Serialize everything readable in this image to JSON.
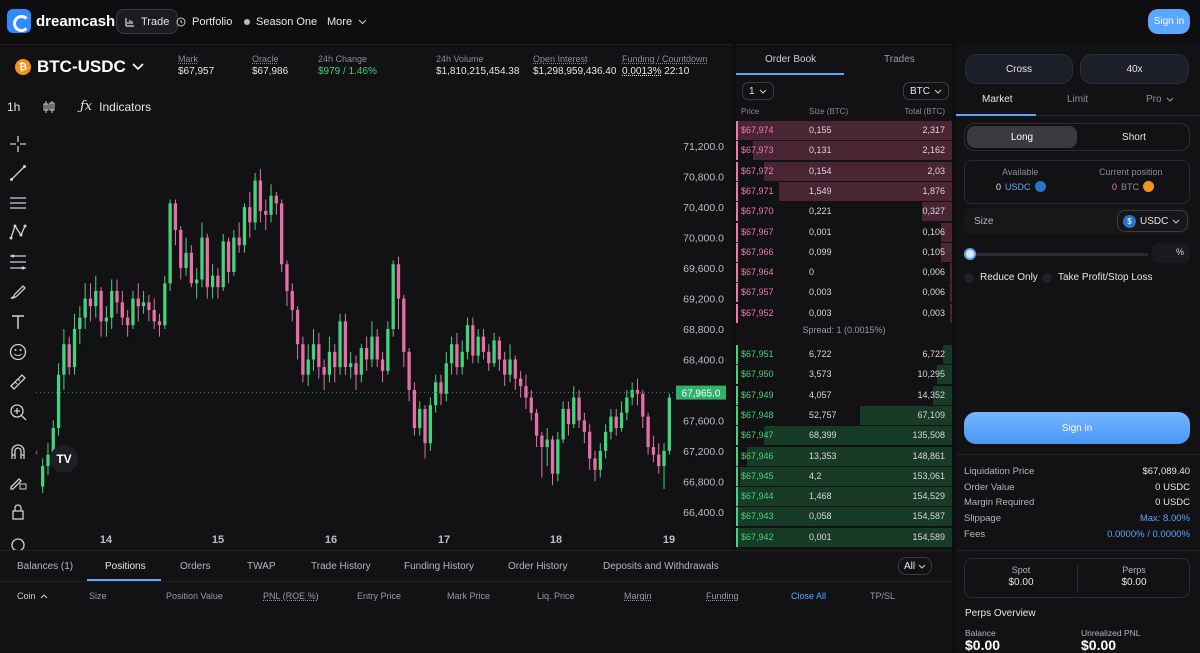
{
  "nav": {
    "brand": "dreamcash",
    "items": [
      "Trade",
      "Portfolio",
      "Season One",
      "More"
    ],
    "signin": "Sign in"
  },
  "market": {
    "symbol": "BTC-USDC",
    "stats": [
      {
        "label": "Mark",
        "value": "$67,957"
      },
      {
        "label": "Oracle",
        "value": "$67,986"
      },
      {
        "label": "24h Change",
        "value": "$979 / 1.46%"
      },
      {
        "label": "24h Volume",
        "value": "$1,810,215,454.38"
      },
      {
        "label": "Open Interest",
        "value": "$1,298,959,436.40"
      },
      {
        "label": "Funding / Countdown",
        "value": "0.0013%",
        "countdown": "22:10"
      }
    ]
  },
  "chart_toolbar": {
    "timeframe": "1h",
    "indicators": "Indicators"
  },
  "chart_data": {
    "type": "candlestick",
    "xlabels": [
      "14",
      "15",
      "16",
      "17",
      "18",
      "19"
    ],
    "ylabels": [
      "71,200.0",
      "70,800.0",
      "70,400.0",
      "70,000.0",
      "69,600.0",
      "69,200.0",
      "68,800.0",
      "68,400.0",
      "68,000.0",
      "67,600.0",
      "67,200.0",
      "66,800.0",
      "66,400.0"
    ],
    "ylim": [
      66200,
      71400
    ],
    "last_price": 67965,
    "last_price_label": "67,965.0",
    "candles": [
      [
        66730,
        67000,
        66650,
        67100
      ],
      [
        67000,
        67150,
        66880,
        67300
      ],
      [
        67150,
        67500,
        67050,
        67600
      ],
      [
        67500,
        68200,
        67400,
        68350
      ],
      [
        68200,
        68600,
        68000,
        68800
      ],
      [
        68600,
        68300,
        68200,
        68700
      ],
      [
        68300,
        68800,
        68200,
        69000
      ],
      [
        68800,
        68950,
        68600,
        69100
      ],
      [
        68950,
        69200,
        68800,
        69400
      ],
      [
        69200,
        69100,
        68900,
        69400
      ],
      [
        69100,
        69300,
        68950,
        69500
      ],
      [
        69300,
        68900,
        68700,
        69350
      ],
      [
        68900,
        68950,
        68700,
        69100
      ],
      [
        68950,
        69300,
        68800,
        69450
      ],
      [
        69300,
        69150,
        69000,
        69450
      ],
      [
        69150,
        68950,
        68850,
        69300
      ],
      [
        68950,
        68850,
        68700,
        69050
      ],
      [
        68850,
        69200,
        68800,
        69300
      ],
      [
        69200,
        69100,
        68900,
        69400
      ],
      [
        69100,
        69150,
        69000,
        69300
      ],
      [
        69150,
        69050,
        68900,
        69250
      ],
      [
        69050,
        68900,
        68800,
        69200
      ],
      [
        68900,
        68850,
        68700,
        69000
      ],
      [
        68850,
        69400,
        68800,
        69500
      ],
      [
        69400,
        70450,
        69300,
        70500
      ],
      [
        70450,
        70100,
        69900,
        70500
      ],
      [
        70100,
        69600,
        69450,
        70150
      ],
      [
        69600,
        69800,
        69500,
        70000
      ],
      [
        69800,
        69400,
        69350,
        69900
      ],
      [
        69400,
        69450,
        69200,
        69600
      ],
      [
        69450,
        70000,
        69350,
        70200
      ],
      [
        70000,
        69350,
        69200,
        70050
      ],
      [
        69350,
        69500,
        69200,
        69650
      ],
      [
        69500,
        69350,
        69200,
        69600
      ],
      [
        69350,
        69950,
        69300,
        70050
      ],
      [
        69950,
        69550,
        69400,
        70000
      ],
      [
        69550,
        70000,
        69500,
        70100
      ],
      [
        70000,
        69900,
        69800,
        70200
      ],
      [
        69900,
        70400,
        69800,
        70450
      ],
      [
        70400,
        70200,
        70000,
        70600
      ],
      [
        70200,
        70750,
        70100,
        70850
      ],
      [
        70750,
        70350,
        70200,
        70900
      ],
      [
        70350,
        70300,
        70100,
        70500
      ],
      [
        70300,
        70550,
        70200,
        70700
      ],
      [
        70550,
        70450,
        70300,
        70600
      ],
      [
        70450,
        69650,
        69550,
        70500
      ],
      [
        69650,
        69300,
        69100,
        69700
      ],
      [
        69300,
        69050,
        68900,
        69400
      ],
      [
        69050,
        68600,
        68400,
        69100
      ],
      [
        68600,
        68200,
        68100,
        68700
      ],
      [
        68200,
        68400,
        68050,
        68600
      ],
      [
        68400,
        68600,
        68250,
        68800
      ],
      [
        68600,
        68300,
        68150,
        68750
      ],
      [
        68300,
        68200,
        68000,
        68400
      ],
      [
        68200,
        68500,
        68100,
        68700
      ],
      [
        68500,
        68300,
        68100,
        68600
      ],
      [
        68300,
        68900,
        68200,
        69000
      ],
      [
        68900,
        68300,
        68200,
        69000
      ],
      [
        68300,
        68350,
        68150,
        68500
      ],
      [
        68350,
        68200,
        68000,
        68450
      ],
      [
        68200,
        68550,
        68100,
        68600
      ],
      [
        68550,
        68400,
        68250,
        68700
      ],
      [
        68400,
        68700,
        68300,
        68900
      ],
      [
        68700,
        68400,
        68300,
        68800
      ],
      [
        68400,
        68250,
        68100,
        68500
      ],
      [
        68250,
        68800,
        68200,
        68900
      ],
      [
        68800,
        69650,
        68700,
        69700
      ],
      [
        69650,
        69200,
        68800,
        69750
      ],
      [
        69200,
        68500,
        68300,
        69250
      ],
      [
        68500,
        68000,
        67850,
        68550
      ],
      [
        68000,
        67500,
        67400,
        68100
      ],
      [
        67500,
        67750,
        67400,
        67850
      ],
      [
        67750,
        67300,
        67100,
        67800
      ],
      [
        67300,
        67800,
        67200,
        67900
      ],
      [
        67800,
        68100,
        67700,
        68200
      ],
      [
        68100,
        67950,
        67800,
        68200
      ],
      [
        67950,
        68350,
        67850,
        68500
      ],
      [
        68350,
        68600,
        68200,
        68700
      ],
      [
        68600,
        68300,
        68200,
        68750
      ],
      [
        68300,
        68500,
        68200,
        68650
      ],
      [
        68500,
        68850,
        68400,
        68950
      ],
      [
        68850,
        68450,
        68350,
        68950
      ],
      [
        68450,
        68700,
        68350,
        68800
      ],
      [
        68700,
        68500,
        68400,
        68800
      ],
      [
        68500,
        68350,
        68250,
        68600
      ],
      [
        68350,
        68650,
        68300,
        68750
      ],
      [
        68650,
        68400,
        68250,
        68700
      ],
      [
        68400,
        68200,
        68050,
        68500
      ],
      [
        68200,
        68400,
        68100,
        68600
      ],
      [
        68400,
        68150,
        68000,
        68450
      ],
      [
        68150,
        68050,
        67900,
        68250
      ],
      [
        68050,
        67900,
        67750,
        68200
      ],
      [
        67900,
        67700,
        67600,
        68000
      ],
      [
        67700,
        67400,
        67250,
        67750
      ],
      [
        67400,
        67250,
        66850,
        67450
      ],
      [
        67250,
        67350,
        67000,
        67500
      ],
      [
        67350,
        66900,
        66750,
        67400
      ],
      [
        66900,
        67350,
        66800,
        67450
      ],
      [
        67350,
        67750,
        67300,
        67850
      ],
      [
        67750,
        67550,
        67400,
        67850
      ],
      [
        67550,
        67900,
        67500,
        68050
      ],
      [
        67900,
        67600,
        67500,
        68000
      ],
      [
        67600,
        67450,
        67300,
        67700
      ],
      [
        67450,
        67100,
        66950,
        67550
      ],
      [
        67100,
        66950,
        66800,
        67200
      ],
      [
        66950,
        67200,
        66850,
        67300
      ],
      [
        67200,
        67450,
        67100,
        67550
      ],
      [
        67450,
        67650,
        67350,
        67750
      ],
      [
        67650,
        67500,
        67400,
        67750
      ],
      [
        67500,
        67700,
        67450,
        67850
      ],
      [
        67700,
        67900,
        67600,
        68000
      ],
      [
        67900,
        68000,
        67800,
        68100
      ],
      [
        68000,
        67950,
        67800,
        68150
      ],
      [
        67950,
        67650,
        67500,
        68000
      ],
      [
        67650,
        67250,
        67150,
        67700
      ],
      [
        67250,
        67150,
        67050,
        67400
      ],
      [
        67150,
        67000,
        66900,
        67300
      ],
      [
        67000,
        67200,
        66700,
        67300
      ],
      [
        67200,
        67900,
        67150,
        67950
      ]
    ]
  },
  "orderbook": {
    "tabs": [
      "Order Book",
      "Trades"
    ],
    "grouping": "1",
    "unit": "BTC",
    "headers": [
      "Price",
      "Size (BTC)",
      "Total (BTC)"
    ],
    "asks": [
      {
        "price": "$67,974",
        "size": "0,155",
        "total": "2,317",
        "depth": 1.0
      },
      {
        "price": "$67,973",
        "size": "0,131",
        "total": "2,162",
        "depth": 0.93
      },
      {
        "price": "$67,972",
        "size": "0,154",
        "total": "2,03",
        "depth": 0.88
      },
      {
        "price": "$67,971",
        "size": "1,549",
        "total": "1,876",
        "depth": 0.81
      },
      {
        "price": "$67,970",
        "size": "0,221",
        "total": "0,327",
        "depth": 0.14
      },
      {
        "price": "$67,967",
        "size": "0,001",
        "total": "0,106",
        "depth": 0.05
      },
      {
        "price": "$67,966",
        "size": "0,099",
        "total": "0,105",
        "depth": 0.05
      },
      {
        "price": "$67,964",
        "size": "0",
        "total": "0,006",
        "depth": 0.01
      },
      {
        "price": "$67,957",
        "size": "0,003",
        "total": "0,006",
        "depth": 0.01
      },
      {
        "price": "$67,952",
        "size": "0,003",
        "total": "0,003",
        "depth": 0.01
      }
    ],
    "spread": "Spread: 1 (0.0015%)",
    "bids": [
      {
        "price": "$67,951",
        "size": "6,722",
        "total": "6,722",
        "depth": 0.04
      },
      {
        "price": "$67,950",
        "size": "3,573",
        "total": "10,295",
        "depth": 0.07
      },
      {
        "price": "$67,949",
        "size": "4,057",
        "total": "14,352",
        "depth": 0.09
      },
      {
        "price": "$67,948",
        "size": "52,757",
        "total": "67,109",
        "depth": 0.43
      },
      {
        "price": "$67,947",
        "size": "68,399",
        "total": "135,508",
        "depth": 0.88
      },
      {
        "price": "$67,946",
        "size": "13,353",
        "total": "148,861",
        "depth": 0.96
      },
      {
        "price": "$67,945",
        "size": "4,2",
        "total": "153,061",
        "depth": 0.99
      },
      {
        "price": "$67,944",
        "size": "1,468",
        "total": "154,529",
        "depth": 1.0
      },
      {
        "price": "$67,943",
        "size": "0,058",
        "total": "154,587",
        "depth": 1.0
      },
      {
        "price": "$67,942",
        "size": "0,001",
        "total": "154,589",
        "depth": 1.0
      }
    ]
  },
  "trade": {
    "margin_mode": "Cross",
    "leverage": "40x",
    "order_tabs": [
      "Market",
      "Limit",
      "Pro"
    ],
    "side": {
      "long": "Long",
      "short": "Short"
    },
    "available": {
      "label": "Available",
      "value": "0",
      "unit": "USDC"
    },
    "position": {
      "label": "Current position",
      "value": "0",
      "unit": "BTC"
    },
    "size_label": "Size",
    "size_unit": "USDC",
    "size_percent": 0,
    "percent_sign": "%",
    "reduce_only": "Reduce Only",
    "tpsl": "Take Profit/Stop Loss",
    "signin": "Sign in",
    "info": [
      {
        "k": "Liquidation Price",
        "v": "$67,089.40"
      },
      {
        "k": "Order Value",
        "v": "0 USDC"
      },
      {
        "k": "Margin Required",
        "v": "0 USDC"
      },
      {
        "k": "Slippage",
        "v": "Max: 8.00%",
        "blue": true
      },
      {
        "k": "Fees",
        "v": "0.0000% / 0.0000%",
        "blue": true
      }
    ],
    "spot": {
      "label": "Spot",
      "value": "$0.00"
    },
    "perps": {
      "label": "Perps",
      "value": "$0.00"
    },
    "overview_title": "Perps Overview",
    "balance": {
      "label": "Balance",
      "value": "$0.00"
    },
    "upnl": {
      "label": "Unrealized PNL",
      "value": "$0.00"
    }
  },
  "bottom": {
    "tabs": [
      "Balances (1)",
      "Positions",
      "Orders",
      "TWAP",
      "Trade History",
      "Funding History",
      "Order History",
      "Deposits and Withdrawals"
    ],
    "filter": "All",
    "columns": [
      "Coin",
      "Size",
      "Position Value",
      "PNL (ROE %)",
      "Entry Price",
      "Mark Price",
      "Liq. Price",
      "Margin",
      "Funding",
      "Close All",
      "TP/SL"
    ]
  },
  "colors": {
    "up": "#43d47e",
    "down": "#e76fa8",
    "accent": "#5aa7ff"
  }
}
